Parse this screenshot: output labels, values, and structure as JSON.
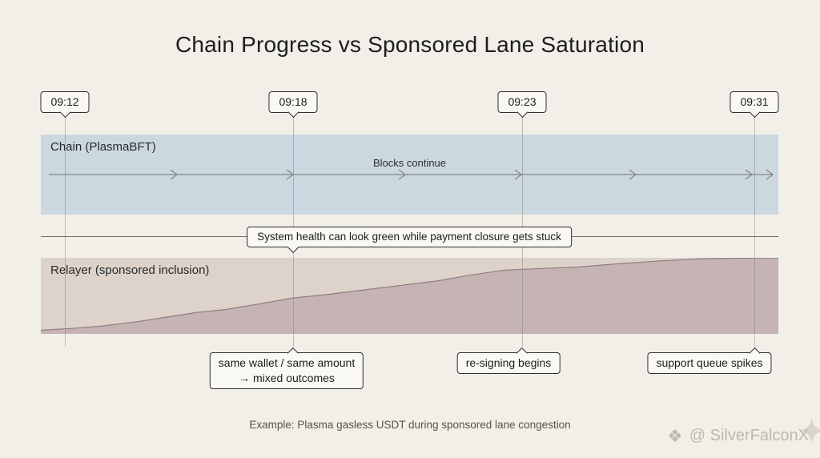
{
  "title": "Chain Progress vs Sponsored Lane Saturation",
  "timeline": {
    "markers": [
      "09:12",
      "09:18",
      "09:23",
      "09:31"
    ]
  },
  "chain_band": {
    "label": "Chain (PlasmaBFT)",
    "flow_label": "Blocks continue"
  },
  "divider_note": "System health can look green while payment closure gets stuck",
  "relayer_band": {
    "label": "Relayer (sponsored inclusion)",
    "saturation_curve": [
      [
        0,
        0.05
      ],
      [
        0.04,
        0.07
      ],
      [
        0.08,
        0.1
      ],
      [
        0.13,
        0.16
      ],
      [
        0.17,
        0.22
      ],
      [
        0.21,
        0.28
      ],
      [
        0.25,
        0.32
      ],
      [
        0.3,
        0.4
      ],
      [
        0.34,
        0.47
      ],
      [
        0.39,
        0.52
      ],
      [
        0.44,
        0.58
      ],
      [
        0.49,
        0.64
      ],
      [
        0.54,
        0.7
      ],
      [
        0.58,
        0.77
      ],
      [
        0.63,
        0.84
      ],
      [
        0.68,
        0.86
      ],
      [
        0.73,
        0.88
      ],
      [
        0.78,
        0.92
      ],
      [
        0.84,
        0.96
      ],
      [
        0.9,
        0.99
      ],
      [
        1,
        1
      ]
    ]
  },
  "callouts": {
    "wallet_line1": "same wallet / same amount",
    "wallet_line2": "→ mixed outcomes",
    "resigning": "re-signing begins",
    "support": "support queue spikes"
  },
  "caption": "Example: Plasma gasless USDT during sponsored lane congestion",
  "watermark": {
    "icon_glyph": "❖",
    "flourish_glyph": "✦",
    "text": "@ SilverFalconX"
  },
  "colors": {
    "background": "#f2efe9",
    "chain_band": "#ccd8e0",
    "relayer_band": "#ddd3ca",
    "saturation_fill": "#c6b3b4",
    "saturation_stroke": "#8f7e81",
    "box_background": "#faf8f3",
    "box_border": "#2f2f2f",
    "gridline": "#8f8a82",
    "text": "#1d1d1d"
  }
}
